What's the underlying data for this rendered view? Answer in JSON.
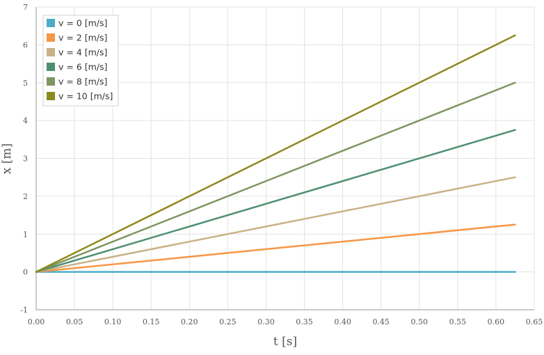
{
  "chart_data": {
    "type": "line",
    "xlabel": "t [s]",
    "ylabel": "x [m]",
    "xlim": [
      0,
      0.65
    ],
    "ylim": [
      -1,
      7
    ],
    "xticks": [
      "0.00",
      "0.05",
      "0.10",
      "0.15",
      "0.20",
      "0.25",
      "0.30",
      "0.35",
      "0.40",
      "0.45",
      "0.50",
      "0.55",
      "0.60",
      "0.65"
    ],
    "yticks": [
      "-1",
      "0",
      "1",
      "2",
      "3",
      "4",
      "5",
      "6",
      "7"
    ],
    "grid": true,
    "legend_position": "top-left",
    "series": [
      {
        "name": "v = 0 [m/s]",
        "color": "#4bacc6",
        "x": [
          0,
          0.625
        ],
        "y": [
          0,
          0
        ]
      },
      {
        "name": "v = 2 [m/s]",
        "color": "#f79646",
        "x": [
          0,
          0.625
        ],
        "y": [
          0,
          1.25
        ]
      },
      {
        "name": "v = 4 [m/s]",
        "color": "#c9b286",
        "x": [
          0,
          0.625
        ],
        "y": [
          0,
          2.5
        ]
      },
      {
        "name": "v = 6 [m/s]",
        "color": "#4e8f71",
        "x": [
          0,
          0.625
        ],
        "y": [
          0,
          3.75
        ]
      },
      {
        "name": "v = 8 [m/s]",
        "color": "#7f9660",
        "x": [
          0,
          0.625
        ],
        "y": [
          0,
          5.0
        ]
      },
      {
        "name": "v = 10 [m/s]",
        "color": "#8c8a1a",
        "x": [
          0,
          0.625
        ],
        "y": [
          0,
          6.25
        ]
      }
    ]
  }
}
